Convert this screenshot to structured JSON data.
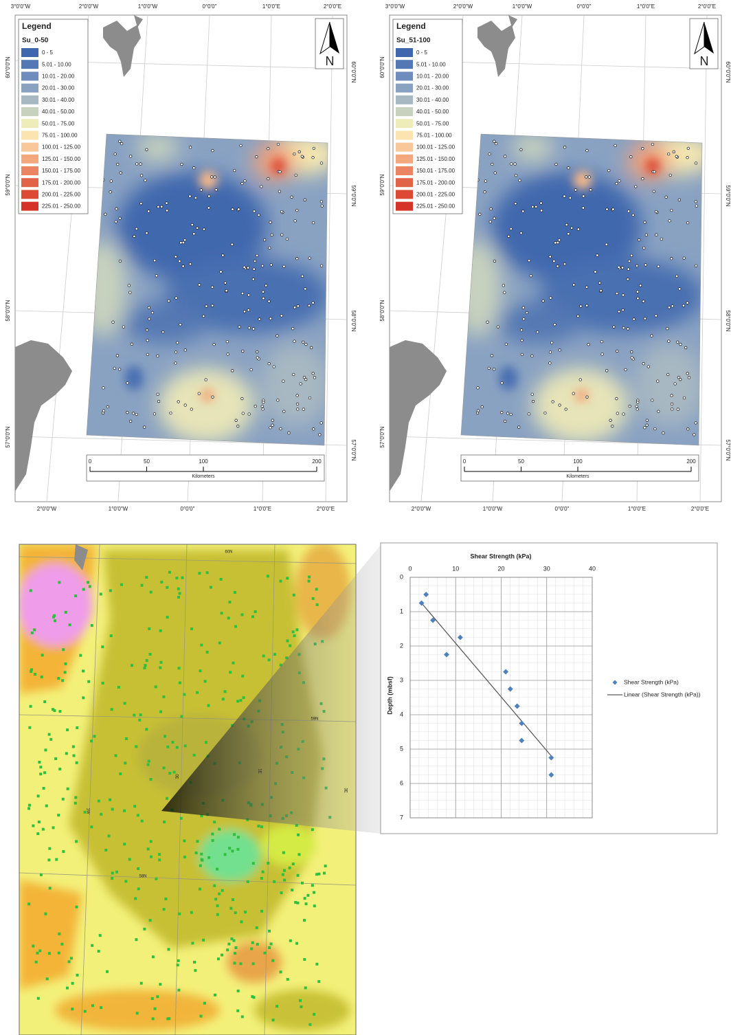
{
  "maps": [
    {
      "legend_title": "Legend",
      "layer": "Su_0-50",
      "classes": [
        {
          "label": "0 - 5",
          "color": "#3f67ad"
        },
        {
          "label": "5.01 - 10.00",
          "color": "#5478b3"
        },
        {
          "label": "10.01 - 20.00",
          "color": "#6e8dbc"
        },
        {
          "label": "20.01 - 30.00",
          "color": "#8aa2c2"
        },
        {
          "label": "30.01 - 40.00",
          "color": "#a7b8c2"
        },
        {
          "label": "40.01 - 50.00",
          "color": "#c7d1be"
        },
        {
          "label": "50.01 - 75.00",
          "color": "#eeecb8"
        },
        {
          "label": "75.01 - 100.00",
          "color": "#fbe4b0"
        },
        {
          "label": "100.01 - 125.00",
          "color": "#f8c89a"
        },
        {
          "label": "125.01 - 150.00",
          "color": "#f2a77d"
        },
        {
          "label": "150.01 - 175.00",
          "color": "#ea8462"
        },
        {
          "label": "175.01 - 200.00",
          "color": "#e26448"
        },
        {
          "label": "200.01 - 225.00",
          "color": "#dc4a36"
        },
        {
          "label": "225.01 - 250.00",
          "color": "#d53327"
        }
      ],
      "lon_top": [
        "3°0'0\"W",
        "2°0'0\"W",
        "1°0'0\"W",
        "0°0'0\"",
        "1°0'0\"E",
        "2°0'0\"E"
      ],
      "lon_bottom": [
        "2°0'0\"W",
        "1°0'0\"W",
        "0°0'0\"",
        "1°0'0\"E",
        "2°0'0\"E"
      ],
      "lat_left": [
        "60°0'0\"N",
        "59°0'0\"N",
        "58°0'0\"N",
        "57°0'0\"N"
      ],
      "lat_right": [
        "60°0'0\"N",
        "59°0'0\"N",
        "58°0'0\"N",
        "57°0'0\"N"
      ],
      "scale": {
        "lim": [
          0,
          200
        ],
        "ticks": [
          0,
          50,
          100,
          200
        ],
        "unit": "Kilometers"
      },
      "north": "N"
    },
    {
      "legend_title": "Legend",
      "layer": "Su_51-100",
      "classes": [
        {
          "label": "0 - 5",
          "color": "#3f67ad"
        },
        {
          "label": "5.01 - 10.00",
          "color": "#5478b3"
        },
        {
          "label": "10.01 - 20.00",
          "color": "#6e8dbc"
        },
        {
          "label": "20.01 - 30.00",
          "color": "#8aa2c2"
        },
        {
          "label": "30.01 - 40.00",
          "color": "#a7b8c2"
        },
        {
          "label": "40.01 - 50.00",
          "color": "#c7d1be"
        },
        {
          "label": "50.01 - 75.00",
          "color": "#eeecb8"
        },
        {
          "label": "75.01 - 100.00",
          "color": "#fbe4b0"
        },
        {
          "label": "100.01 - 125.00",
          "color": "#f8c89a"
        },
        {
          "label": "125.01 - 150.00",
          "color": "#f2a77d"
        },
        {
          "label": "150.01 - 175.00",
          "color": "#ea8462"
        },
        {
          "label": "175.01 - 200.00",
          "color": "#e26448"
        },
        {
          "label": "200.01 - 225.00",
          "color": "#dc4a36"
        },
        {
          "label": "225.01 - 250.00",
          "color": "#d53327"
        }
      ],
      "lon_top": [
        "3°0'0\"W",
        "2°0'0\"W",
        "1°0'0\"W",
        "0°0'0\"",
        "1°0'0\"E",
        "2°0'0\"E"
      ],
      "lon_bottom": [
        "2°0'0\"W",
        "1°0'0\"W",
        "0°0'0\"",
        "1°0'0\"E",
        "2°0'0\"E"
      ],
      "lat_left": [
        "60°0'0\"N",
        "59°0'0\"N",
        "58°0'0\"N",
        "57°0'0\"N"
      ],
      "lat_right": [
        "60°0'0\"N",
        "59°0'0\"N",
        "58°0'0\"N",
        "57°0'0\"N"
      ],
      "scale": {
        "lim": [
          0,
          200
        ],
        "ticks": [
          0,
          50,
          100,
          200
        ],
        "unit": "Kilometers"
      },
      "north": "N"
    }
  ],
  "geology_map": {
    "labels": [
      "60N",
      "59N",
      "58N",
      "1W",
      "0E",
      "1E",
      "3E"
    ]
  },
  "chart_data": {
    "type": "scatter",
    "title": "Shear Strength (kPa)",
    "ylabel": "Depth (mbsf)",
    "xlim": [
      0,
      40
    ],
    "xticks": [
      0,
      10,
      20,
      30,
      40
    ],
    "ylim": [
      0,
      7
    ],
    "yticks": [
      0,
      1,
      2,
      3,
      4,
      5,
      6,
      7
    ],
    "y_inverted": true,
    "x_axis_top": true,
    "grid": true,
    "series": [
      {
        "name": "Shear Strength (kPa)",
        "color": "#4f81bd",
        "marker": "diamond",
        "x": [
          3.5,
          2.5,
          5,
          11,
          8,
          21,
          22,
          23.5,
          24.5,
          24.5,
          31,
          31
        ],
        "values": [
          0.5,
          0.75,
          1.25,
          1.75,
          2.25,
          2.75,
          3.25,
          3.75,
          4.25,
          4.75,
          5.25,
          5.75
        ]
      },
      {
        "name": "Linear (Shear Strength (kPa))",
        "color": "#595959",
        "marker": "line",
        "x": [
          2.5,
          31
        ],
        "values": [
          0.75,
          5.2
        ]
      }
    ]
  }
}
